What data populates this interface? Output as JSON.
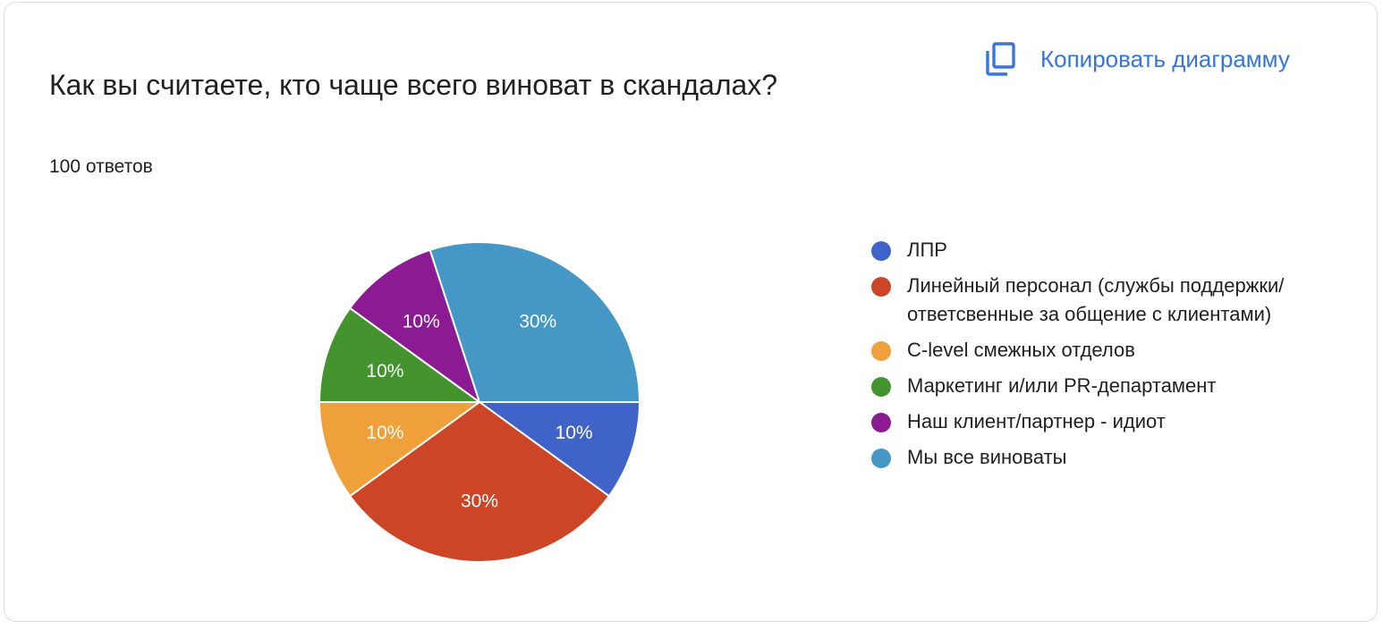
{
  "question": "Как вы считаете, кто чаще всего виноват в скандалах?",
  "responses": "100 ответов",
  "copy_button": {
    "label": "Копировать диаграмму",
    "icon": "copy-icon",
    "color": "#3674e0"
  },
  "chart_data": {
    "type": "pie",
    "title": "",
    "slices": [
      {
        "label": "ЛПР",
        "value": 10,
        "percent_label": "10%",
        "color": "#3f63c9"
      },
      {
        "label": "Линейный персонал (службы поддержки/ответсвенные за общение с клиентами)",
        "value": 30,
        "percent_label": "30%",
        "color": "#cc4526"
      },
      {
        "label": "C-level смежных отделов",
        "value": 10,
        "percent_label": "10%",
        "color": "#f0a03a"
      },
      {
        "label": "Маркетинг и/или PR-департамент",
        "value": 10,
        "percent_label": "10%",
        "color": "#43942e"
      },
      {
        "label": "Наш клиент/партнер - идиот",
        "value": 10,
        "percent_label": "10%",
        "color": "#8c1b93"
      },
      {
        "label": "Мы все виноваты",
        "value": 30,
        "percent_label": "30%",
        "color": "#4598c5"
      }
    ],
    "legend_position": "right"
  }
}
